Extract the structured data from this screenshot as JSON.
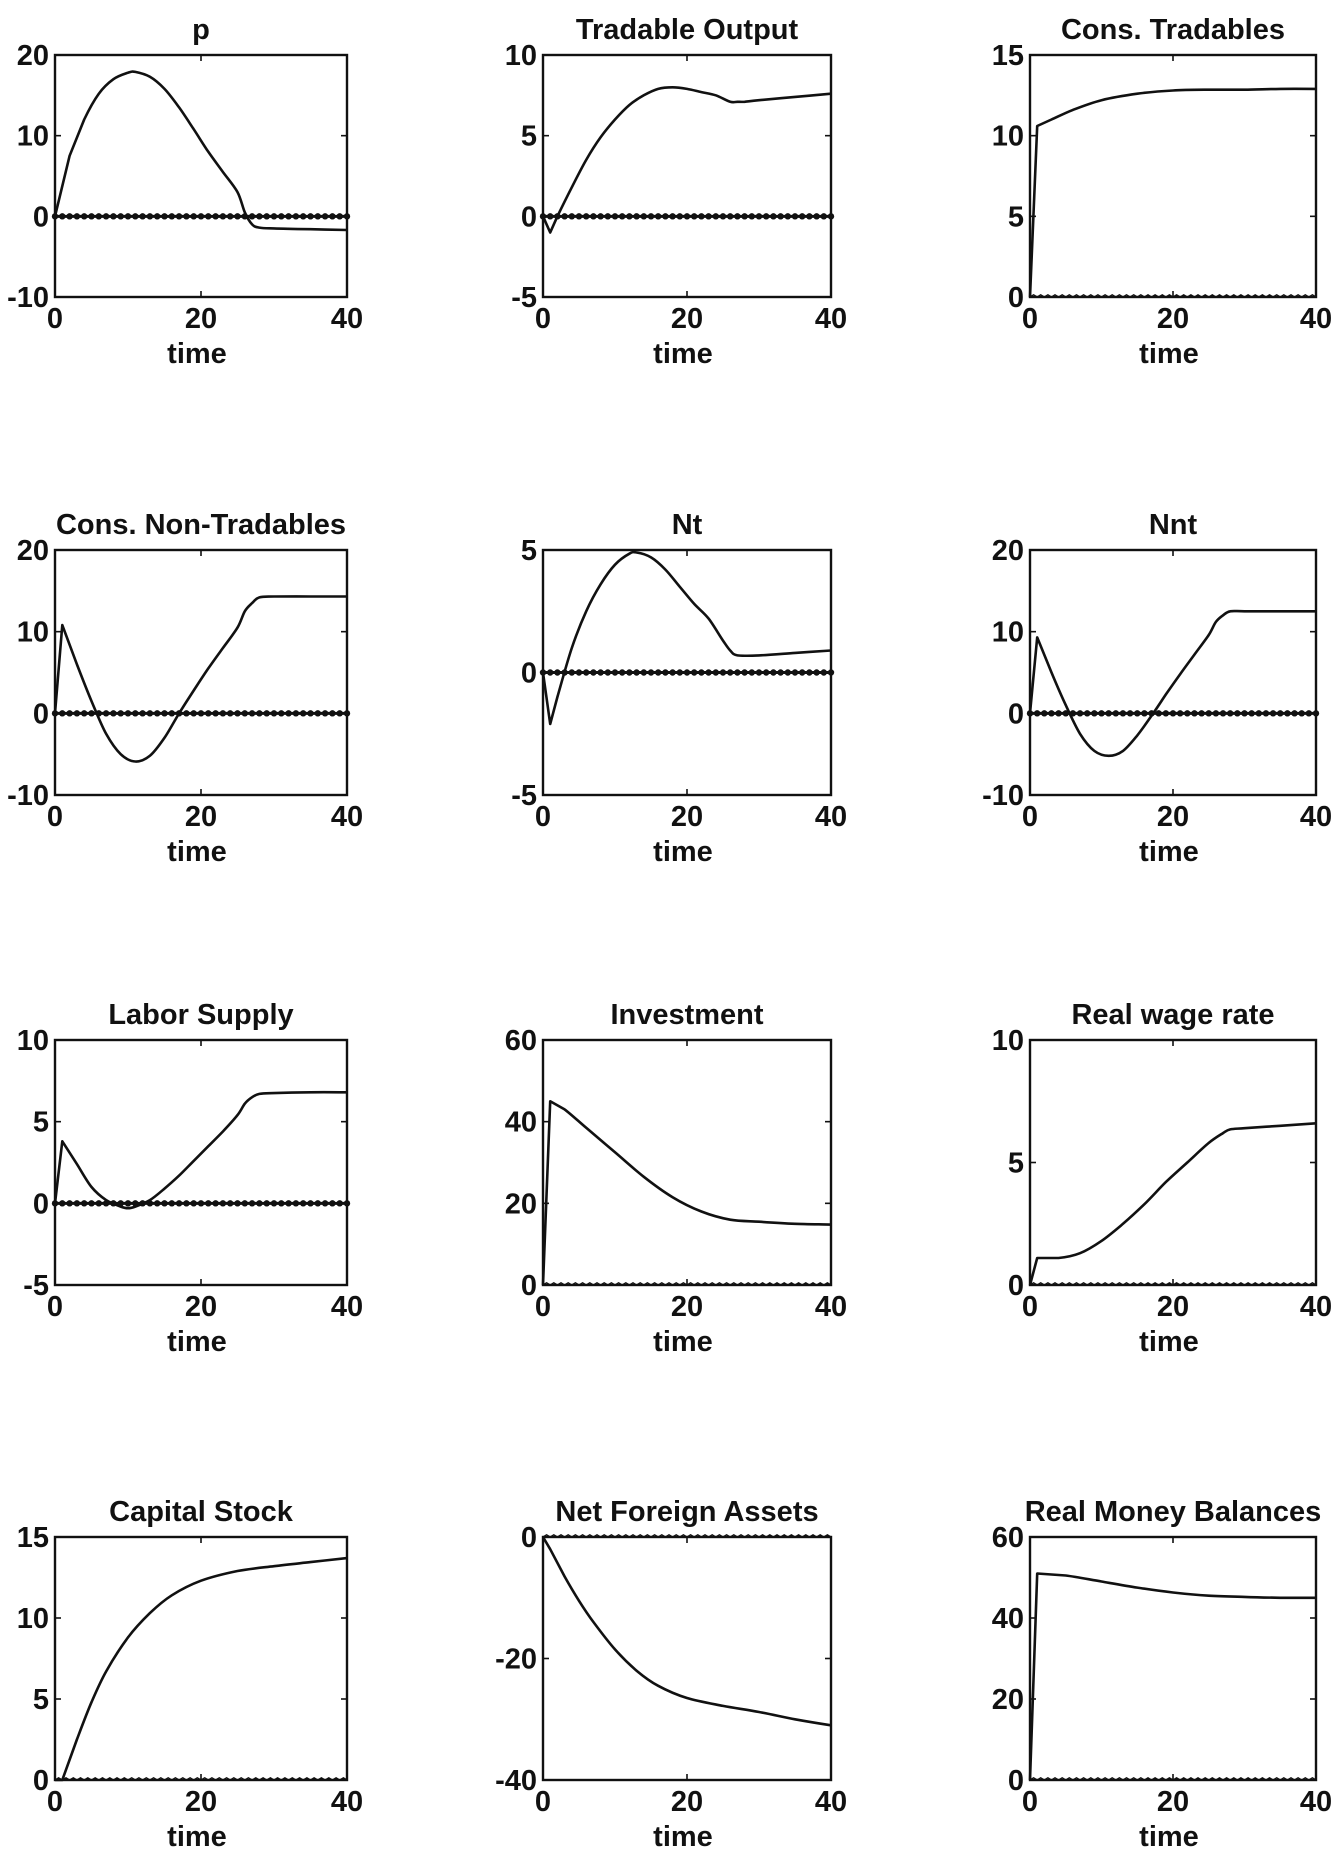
{
  "colors": {
    "ink": "#111111",
    "background": "#ffffff"
  },
  "chart_data": [
    {
      "type": "line",
      "title": "p",
      "xlabel": "time",
      "ylabel": "",
      "xlim": [
        0,
        40
      ],
      "ylim": [
        -10,
        20
      ],
      "xticks": [
        "0",
        "20",
        "40"
      ],
      "yticks": [
        "-10",
        "0",
        "10",
        "20"
      ],
      "grid": false,
      "baseline_marker": "dotted",
      "series": [
        {
          "x": [
            0,
            2,
            4,
            6,
            8,
            10,
            11,
            13,
            15,
            17,
            19,
            21,
            23,
            25,
            26,
            27,
            28,
            30,
            35,
            40
          ],
          "values": [
            0,
            7.5,
            12,
            15.2,
            17,
            17.8,
            17.9,
            17.3,
            15.8,
            13.5,
            10.8,
            8,
            5.5,
            3,
            0.5,
            -1,
            -1.4,
            -1.5,
            -1.6,
            -1.7
          ]
        },
        {
          "x": [
            0,
            40
          ],
          "values": [
            0,
            0
          ]
        }
      ]
    },
    {
      "type": "line",
      "title": "Tradable Output",
      "xlabel": "time",
      "ylabel": "",
      "xlim": [
        0,
        40
      ],
      "ylim": [
        -5,
        10
      ],
      "xticks": [
        "0",
        "20",
        "40"
      ],
      "yticks": [
        "-5",
        "0",
        "5",
        "10"
      ],
      "grid": false,
      "baseline_marker": "dotted",
      "series": [
        {
          "x": [
            0,
            1,
            2,
            4,
            6,
            8,
            10,
            12,
            14,
            16,
            18,
            20,
            22,
            24,
            26,
            27,
            28,
            30,
            35,
            40
          ],
          "values": [
            0,
            -1,
            0,
            1.8,
            3.5,
            4.9,
            6,
            6.9,
            7.5,
            7.9,
            8,
            7.9,
            7.7,
            7.5,
            7.1,
            7.1,
            7.1,
            7.2,
            7.4,
            7.6
          ]
        },
        {
          "x": [
            0,
            40
          ],
          "values": [
            0,
            0
          ]
        }
      ]
    },
    {
      "type": "line",
      "title": "Cons. Tradables",
      "xlabel": "time",
      "ylabel": "",
      "xlim": [
        0,
        40
      ],
      "ylim": [
        0,
        15
      ],
      "xticks": [
        "0",
        "20",
        "40"
      ],
      "yticks": [
        "0",
        "5",
        "10",
        "15"
      ],
      "grid": false,
      "baseline_marker": "wavy",
      "series": [
        {
          "x": [
            0,
            1,
            3,
            6,
            10,
            15,
            20,
            25,
            30,
            35,
            40
          ],
          "values": [
            0,
            10.6,
            11,
            11.6,
            12.2,
            12.6,
            12.8,
            12.85,
            12.85,
            12.9,
            12.9
          ]
        },
        {
          "x": [
            0,
            40
          ],
          "values": [
            0,
            0
          ]
        }
      ]
    },
    {
      "type": "line",
      "title": "Cons. Non-Tradables",
      "xlabel": "time",
      "ylabel": "",
      "xlim": [
        0,
        40
      ],
      "ylim": [
        -10,
        20
      ],
      "xticks": [
        "0",
        "20",
        "40"
      ],
      "yticks": [
        "-10",
        "0",
        "10",
        "20"
      ],
      "grid": false,
      "baseline_marker": "dotted",
      "series": [
        {
          "x": [
            0,
            1,
            3,
            5,
            7,
            9,
            11,
            13,
            15,
            17,
            19,
            21,
            23,
            25,
            26,
            27,
            28,
            30,
            35,
            40
          ],
          "values": [
            0,
            10.8,
            6,
            1.5,
            -2.5,
            -5,
            -5.9,
            -5.2,
            -3,
            0,
            2.8,
            5.5,
            8,
            10.5,
            12.5,
            13.5,
            14.2,
            14.3,
            14.3,
            14.3
          ]
        },
        {
          "x": [
            0,
            40
          ],
          "values": [
            0,
            0
          ]
        }
      ]
    },
    {
      "type": "line",
      "title": "Nt",
      "xlabel": "time",
      "ylabel": "",
      "xlim": [
        0,
        40
      ],
      "ylim": [
        -5,
        5
      ],
      "xticks": [
        "0",
        "20",
        "40"
      ],
      "yticks": [
        "-5",
        "0",
        "5"
      ],
      "grid": false,
      "baseline_marker": "dotted",
      "series": [
        {
          "x": [
            0,
            1,
            2,
            4,
            6,
            8,
            10,
            12,
            13,
            15,
            17,
            19,
            21,
            23,
            25,
            26,
            27,
            30,
            35,
            40
          ],
          "values": [
            0,
            -2.1,
            -1,
            1,
            2.5,
            3.6,
            4.4,
            4.85,
            4.9,
            4.7,
            4.2,
            3.5,
            2.8,
            2.2,
            1.3,
            0.9,
            0.7,
            0.7,
            0.8,
            0.9
          ]
        },
        {
          "x": [
            0,
            40
          ],
          "values": [
            0,
            0
          ]
        }
      ]
    },
    {
      "type": "line",
      "title": "Nnt",
      "xlabel": "time",
      "ylabel": "",
      "xlim": [
        0,
        40
      ],
      "ylim": [
        -10,
        20
      ],
      "xticks": [
        "0",
        "20",
        "40"
      ],
      "yticks": [
        "-10",
        "0",
        "10",
        "20"
      ],
      "grid": false,
      "baseline_marker": "dotted",
      "series": [
        {
          "x": [
            0,
            1,
            3,
            5,
            7,
            9,
            11,
            13,
            15,
            17,
            19,
            21,
            23,
            25,
            26,
            27,
            28,
            30,
            35,
            40
          ],
          "values": [
            0,
            9.3,
            5,
            1,
            -2.5,
            -4.6,
            -5.2,
            -4.6,
            -2.7,
            -0.3,
            2.3,
            4.8,
            7.2,
            9.6,
            11.2,
            12,
            12.5,
            12.5,
            12.5,
            12.5
          ]
        },
        {
          "x": [
            0,
            40
          ],
          "values": [
            0,
            0
          ]
        }
      ]
    },
    {
      "type": "line",
      "title": "Labor Supply",
      "xlabel": "time",
      "ylabel": "",
      "xlim": [
        0,
        40
      ],
      "ylim": [
        -5,
        10
      ],
      "xticks": [
        "0",
        "20",
        "40"
      ],
      "yticks": [
        "-5",
        "0",
        "5",
        "10"
      ],
      "grid": false,
      "baseline_marker": "dotted",
      "series": [
        {
          "x": [
            0,
            1,
            3,
            5,
            7,
            9,
            10,
            11,
            13,
            15,
            17,
            19,
            21,
            23,
            25,
            26,
            27,
            28,
            30,
            35,
            40
          ],
          "values": [
            0,
            3.8,
            2.4,
            1,
            0.2,
            -0.2,
            -0.3,
            -0.2,
            0.2,
            0.9,
            1.7,
            2.6,
            3.5,
            4.4,
            5.4,
            6.1,
            6.5,
            6.7,
            6.75,
            6.8,
            6.8
          ]
        },
        {
          "x": [
            0,
            40
          ],
          "values": [
            0,
            0
          ]
        }
      ]
    },
    {
      "type": "line",
      "title": "Investment",
      "xlabel": "time",
      "ylabel": "",
      "xlim": [
        0,
        40
      ],
      "ylim": [
        0,
        60
      ],
      "xticks": [
        "0",
        "20",
        "40"
      ],
      "yticks": [
        "0",
        "20",
        "40",
        "60"
      ],
      "grid": false,
      "baseline_marker": "wavy",
      "series": [
        {
          "x": [
            0,
            1,
            3,
            6,
            10,
            14,
            18,
            22,
            26,
            30,
            35,
            40
          ],
          "values": [
            0,
            45,
            43,
            38.5,
            32.5,
            26.5,
            21.5,
            18,
            16,
            15.5,
            15,
            14.8
          ]
        },
        {
          "x": [
            0,
            40
          ],
          "values": [
            0,
            0
          ]
        }
      ]
    },
    {
      "type": "line",
      "title": "Real wage rate",
      "xlabel": "time",
      "ylabel": "",
      "xlim": [
        0,
        40
      ],
      "ylim": [
        0,
        10
      ],
      "xticks": [
        "0",
        "20",
        "40"
      ],
      "yticks": [
        "0",
        "5",
        "10"
      ],
      "grid": false,
      "baseline_marker": "wavy",
      "series": [
        {
          "x": [
            0,
            1,
            4,
            7,
            10,
            13,
            16,
            19,
            22,
            25,
            27,
            28,
            30,
            35,
            40
          ],
          "values": [
            0,
            1.1,
            1.1,
            1.3,
            1.8,
            2.5,
            3.3,
            4.2,
            5,
            5.8,
            6.2,
            6.35,
            6.4,
            6.5,
            6.6
          ]
        },
        {
          "x": [
            0,
            40
          ],
          "values": [
            0,
            0
          ]
        }
      ]
    },
    {
      "type": "line",
      "title": "Capital Stock",
      "xlabel": "time",
      "ylabel": "",
      "xlim": [
        0,
        40
      ],
      "ylim": [
        0,
        15
      ],
      "xticks": [
        "0",
        "20",
        "40"
      ],
      "yticks": [
        "0",
        "5",
        "10",
        "15"
      ],
      "grid": false,
      "baseline_marker": "wavy",
      "series": [
        {
          "x": [
            0,
            1,
            3,
            5,
            7,
            10,
            13,
            16,
            20,
            25,
            30,
            35,
            40
          ],
          "values": [
            0,
            0,
            2.5,
            4.8,
            6.7,
            8.8,
            10.3,
            11.4,
            12.3,
            12.9,
            13.2,
            13.45,
            13.7
          ]
        },
        {
          "x": [
            0,
            40
          ],
          "values": [
            0,
            0
          ]
        }
      ]
    },
    {
      "type": "line",
      "title": "Net Foreign Assets",
      "xlabel": "time",
      "ylabel": "",
      "xlim": [
        0,
        40
      ],
      "ylim": [
        -40,
        0
      ],
      "xticks": [
        "0",
        "20",
        "40"
      ],
      "yticks": [
        "-40",
        "-20",
        "0"
      ],
      "grid": false,
      "baseline_marker": "wavy",
      "series": [
        {
          "x": [
            0,
            1,
            3,
            5,
            7,
            10,
            13,
            16,
            20,
            25,
            30,
            35,
            40
          ],
          "values": [
            0,
            -2,
            -6.5,
            -10.5,
            -14,
            -18.5,
            -22,
            -24.5,
            -26.5,
            -27.8,
            -28.8,
            -30,
            -31
          ]
        },
        {
          "x": [
            0,
            40
          ],
          "values": [
            0,
            0
          ]
        }
      ]
    },
    {
      "type": "line",
      "title": "Real Money Balances",
      "xlabel": "time",
      "ylabel": "",
      "xlim": [
        0,
        40
      ],
      "ylim": [
        0,
        60
      ],
      "xticks": [
        "0",
        "20",
        "40"
      ],
      "yticks": [
        "0",
        "20",
        "40",
        "60"
      ],
      "grid": false,
      "baseline_marker": "wavy",
      "series": [
        {
          "x": [
            0,
            1,
            5,
            10,
            15,
            20,
            25,
            30,
            35,
            40
          ],
          "values": [
            0,
            51,
            50.5,
            49,
            47.5,
            46.3,
            45.5,
            45.2,
            45,
            45
          ]
        },
        {
          "x": [
            0,
            40
          ],
          "values": [
            0,
            0
          ]
        }
      ]
    }
  ]
}
